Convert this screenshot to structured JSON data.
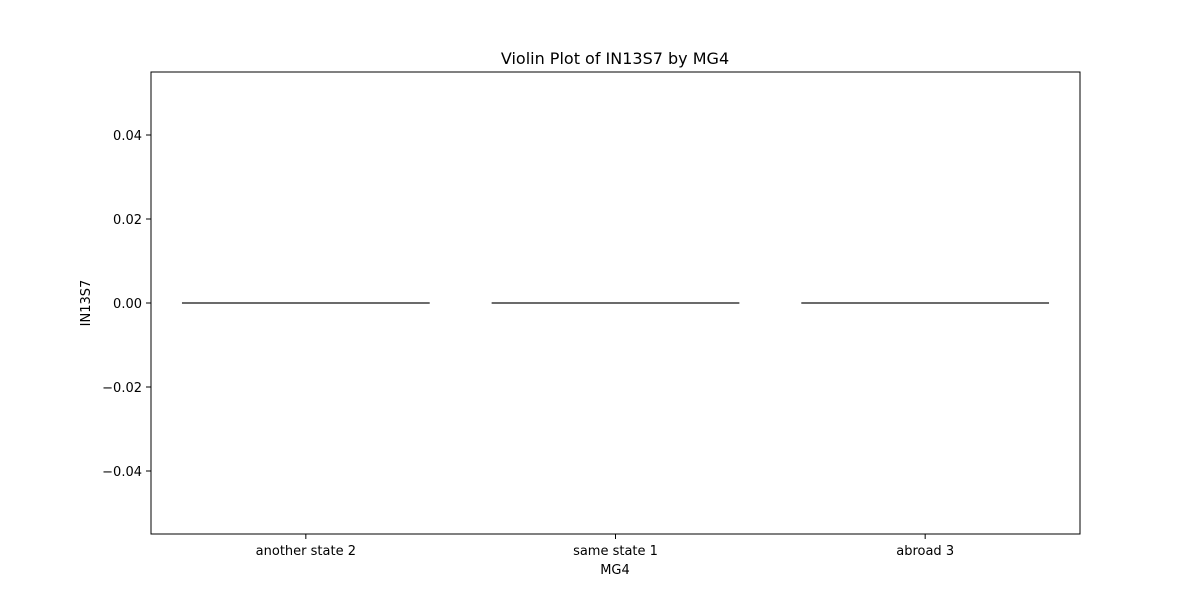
{
  "chart_data": {
    "type": "violin",
    "title": "Violin Plot of IN13S7 by MG4",
    "xlabel": "MG4",
    "ylabel": "IN13S7",
    "categories": [
      "another state 2",
      "same state 1",
      "abroad 3"
    ],
    "values": [
      0.0,
      0.0,
      0.0
    ],
    "ylim": [
      -0.055,
      0.055
    ],
    "yticks": [
      0.04,
      0.02,
      0.0,
      -0.02,
      -0.04
    ],
    "ytick_labels": [
      "0.04",
      "0.02",
      "0.00",
      "−0.02",
      "−0.04"
    ],
    "grid": false,
    "legend": "none"
  },
  "colors": {
    "axis": "#000000",
    "violin_line": "#3a3a3a",
    "background": "#ffffff"
  }
}
